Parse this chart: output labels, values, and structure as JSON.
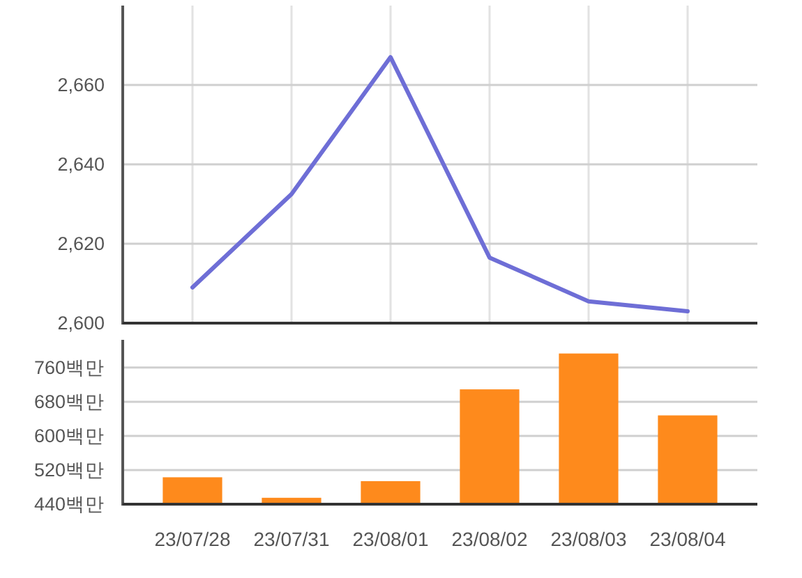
{
  "chart_data": [
    {
      "type": "line",
      "categories": [
        null,
        null,
        null,
        null,
        null,
        null
      ],
      "series": [
        {
          "color": "#6e6ed6",
          "values": [
            2609,
            2632.5,
            2667,
            2616.5,
            2605.5,
            2603
          ]
        }
      ],
      "ylim": [
        2600,
        2680
      ],
      "yticks": [
        {
          "value": 2600,
          "label": "2,600"
        },
        {
          "value": 2620,
          "label": "2,620"
        },
        {
          "value": 2640,
          "label": "2,640"
        },
        {
          "value": 2660,
          "label": "2,660"
        }
      ],
      "grid": true,
      "tick_labels": "y"
    },
    {
      "type": "bar",
      "categories": [
        "23/07/28",
        "23/07/31",
        "23/08/01",
        "23/08/02",
        "23/08/03",
        "23/08/04"
      ],
      "series": [
        {
          "color": "#fe8a1c",
          "values": [
            503,
            455,
            494,
            709,
            793,
            648
          ]
        }
      ],
      "ylim": [
        440,
        825
      ],
      "yticks": [
        {
          "value": 440,
          "label": "440백만"
        },
        {
          "value": 520,
          "label": "520백만"
        },
        {
          "value": 600,
          "label": "600백만"
        },
        {
          "value": 680,
          "label": "680백만"
        },
        {
          "value": 760,
          "label": "760백만"
        }
      ],
      "grid": "y"
    }
  ]
}
